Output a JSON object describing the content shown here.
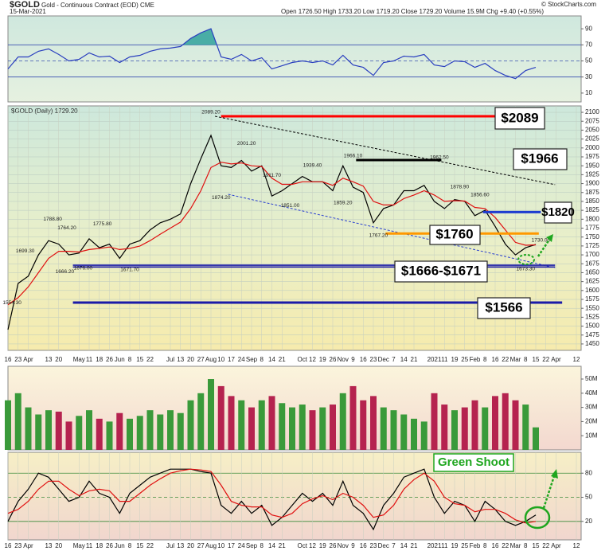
{
  "header": {
    "symbol": "$GOLD",
    "name": "Gold - Continuous Contract (EOD) CME",
    "date": "15-Mar-2021",
    "quote": "Open 1726.50 High 1733.20 Low 1719.20 Close 1729.20 Volume 15.9M Chg +9.40 (+0.55%)",
    "source": "© StockCharts.com"
  },
  "chart_data": [
    {
      "type": "line",
      "series": [
        {
          "color": "#2a3fbf",
          "values": [
            40,
            55,
            55,
            62,
            65,
            58,
            50,
            52,
            60,
            55,
            56,
            48,
            55,
            57,
            62,
            65,
            66,
            68,
            78,
            85,
            90,
            55,
            52,
            58,
            50,
            54,
            40,
            44,
            48,
            50,
            48,
            50,
            45,
            57,
            45,
            42,
            32,
            48,
            50,
            56,
            55,
            58,
            45,
            43,
            50,
            49,
            42,
            47,
            38,
            32,
            28,
            38,
            42,
            null,
            null,
            null,
            null
          ]
        }
      ],
      "ylim": [
        -1,
        106
      ],
      "yticks": [
        90,
        70,
        50,
        30,
        10
      ],
      "reference_lines": [
        70,
        50,
        30
      ],
      "fill_above": 70,
      "fill_color": "#3aa6a0"
    },
    {
      "type": "line",
      "title": "$GOLD (Daily) 1729.20",
      "categories": [
        "16",
        "23",
        "Apr",
        null,
        "13",
        "20",
        null,
        "May",
        "11",
        "18",
        "26",
        "Jun",
        "8",
        "15",
        "22",
        null,
        "Jul",
        "13",
        "20",
        "27",
        "Aug",
        "10",
        "17",
        "24",
        "Sep",
        "8",
        "14",
        "21",
        null,
        "Oct",
        "12",
        "19",
        "26",
        "Nov",
        "9",
        "16",
        "23",
        "Dec",
        "7",
        "14",
        "21",
        null,
        "2021",
        "11",
        "19",
        "25",
        "Feb",
        "8",
        "16",
        "22",
        "Mar",
        "8",
        "15",
        "22",
        "Apr",
        null,
        "12"
      ],
      "series": [
        {
          "color": "#000000",
          "values": [
            1490,
            1620,
            1640,
            1700,
            1740,
            1730,
            1700,
            1705,
            1745,
            1720,
            1730,
            1690,
            1730,
            1740,
            1770,
            1790,
            1800,
            1815,
            1900,
            1970,
            2035,
            1950,
            1945,
            1965,
            1935,
            1950,
            1865,
            1880,
            1900,
            1920,
            1905,
            1905,
            1880,
            1950,
            1890,
            1875,
            1790,
            1830,
            1840,
            1880,
            1880,
            1895,
            1850,
            1830,
            1855,
            1850,
            1810,
            1825,
            1780,
            1730,
            1700,
            1720,
            1729.2,
            null,
            null,
            null,
            null
          ]
        },
        {
          "color": "#e01010",
          "values": [
            1560,
            1580,
            1610,
            1650,
            1690,
            1710,
            1710,
            1708,
            1715,
            1718,
            1722,
            1715,
            1718,
            1725,
            1740,
            1758,
            1775,
            1792,
            1830,
            1880,
            1945,
            1960,
            1955,
            1958,
            1950,
            1948,
            1915,
            1898,
            1898,
            1905,
            1905,
            1905,
            1895,
            1915,
            1905,
            1893,
            1850,
            1840,
            1840,
            1858,
            1868,
            1880,
            1868,
            1850,
            1852,
            1851,
            1833,
            1830,
            1805,
            1770,
            1735,
            1727,
            1728,
            null,
            null,
            null,
            null
          ]
        }
      ],
      "ylim": [
        1432,
        2118
      ],
      "yticks": [
        1450,
        1475,
        1500,
        1525,
        1550,
        1575,
        1600,
        1625,
        1650,
        1675,
        1700,
        1725,
        1750,
        1775,
        1800,
        1825,
        1850,
        1875,
        1900,
        1925,
        1950,
        1975,
        2000,
        2025,
        2050,
        2075,
        2100
      ],
      "grid": true,
      "point_labels": [
        {
          "value": 2089.2,
          "label": "2089.20",
          "x": 20
        },
        {
          "value": 2001.2,
          "label": "2001.20",
          "x": 23.5
        },
        {
          "value": 1911.7,
          "label": "1911.70",
          "x": 26
        },
        {
          "value": 1874.2,
          "label": "1874.20",
          "x": 21
        },
        {
          "value": 1851,
          "label": "1851.00",
          "x": 27.8
        },
        {
          "value": 1939.4,
          "label": "1939.40",
          "x": 30
        },
        {
          "value": 1859.2,
          "label": "1859.20",
          "x": 33
        },
        {
          "value": 1966.1,
          "label": "1966.10",
          "x": 34
        },
        {
          "value": 1767.2,
          "label": "1767.20",
          "x": 36.5
        },
        {
          "value": 1962.5,
          "label": "1962.50",
          "x": 42.5
        },
        {
          "value": 1878.9,
          "label": "1878.90",
          "x": 44.5
        },
        {
          "value": 1856.6,
          "label": "1856.60",
          "x": 46.5
        },
        {
          "value": 1788.8,
          "label": "1788.80",
          "x": 4.4
        },
        {
          "value": 1764.2,
          "label": "1764.20",
          "x": 5.8
        },
        {
          "value": 1699.3,
          "label": "1699.30",
          "x": 1.7
        },
        {
          "value": 1666.2,
          "label": "1666.20",
          "x": 5.6
        },
        {
          "value": 1676,
          "label": "1676.00",
          "x": 7.4
        },
        {
          "value": 1775.8,
          "label": "1775.80",
          "x": 9.3
        },
        {
          "value": 1671.7,
          "label": "1671.70",
          "x": 12
        },
        {
          "value": 1554.3,
          "label": "1554.30",
          "x": 0.4
        },
        {
          "value": 1673.3,
          "label": "1673.30",
          "x": 51
        },
        {
          "value": 1730,
          "label": "1730.00",
          "x": 52.5
        }
      ],
      "levels": [
        {
          "label": "$2089",
          "values": [
            2089
          ],
          "x": [
            21,
            48
          ],
          "color": "#ff0000"
        },
        {
          "label": "$1966",
          "values": [
            1966
          ],
          "x": [
            34.3,
            42.7
          ],
          "color": "#000000"
        },
        {
          "label": "$1820",
          "values": [
            1820
          ],
          "x": [
            46.8,
            52.5
          ],
          "color": "#1e3cd0"
        },
        {
          "label": "$1760",
          "values": [
            1760
          ],
          "x": [
            37.2,
            52.3
          ],
          "color": "#ff9900"
        },
        {
          "label": "$1666-$1671",
          "values": [
            1666,
            1671
          ],
          "x": [
            6.4,
            53.9
          ],
          "color": "#1a1aa8"
        },
        {
          "label": "$1566",
          "values": [
            1566
          ],
          "x": [
            6.4,
            54.6
          ],
          "color": "#1a1aa8"
        }
      ],
      "trendlines": [
        {
          "from": [
            20.4,
            2089
          ],
          "to": [
            53.9,
            1897
          ],
          "color": "#000000"
        },
        {
          "from": [
            21.7,
            1870
          ],
          "to": [
            53.9,
            1664
          ],
          "color": "#2a3fd0"
        }
      ]
    },
    {
      "type": "bar",
      "values": [
        35,
        40,
        30,
        25,
        28,
        27,
        20,
        24,
        28,
        22,
        20,
        26,
        22,
        24,
        28,
        25,
        28,
        26,
        35,
        40,
        50,
        45,
        38,
        35,
        30,
        35,
        38,
        33,
        30,
        32,
        28,
        30,
        32,
        40,
        45,
        35,
        38,
        30,
        28,
        25,
        22,
        20,
        40,
        32,
        28,
        30,
        35,
        30,
        38,
        40,
        35,
        32,
        15.9,
        null,
        null,
        null,
        null
      ],
      "ylim": [
        0,
        59
      ],
      "yticks": [
        {
          "value": 50,
          "label": "50M"
        },
        {
          "value": 40,
          "label": "40M"
        },
        {
          "value": 30,
          "label": "30M"
        },
        {
          "value": 20,
          "label": "20M"
        },
        {
          "value": 10,
          "label": "10M"
        }
      ],
      "up_color": "#3a9a3a",
      "down_color": "#b5234f"
    },
    {
      "type": "line",
      "categories": [
        "16",
        "23",
        "Apr",
        null,
        "13",
        "20",
        null,
        "May",
        "11",
        "18",
        "26",
        "Jun",
        "8",
        "15",
        "22",
        null,
        "Jul",
        "13",
        "20",
        "27",
        "Aug",
        "10",
        "17",
        "24",
        "Sep",
        "8",
        "14",
        "21",
        null,
        "Oct",
        "12",
        "19",
        "26",
        "Nov",
        "9",
        "16",
        "23",
        "Dec",
        "7",
        "14",
        "21",
        null,
        "2021",
        "11",
        "19",
        "25",
        "Feb",
        "8",
        "16",
        "22",
        "Mar",
        "8",
        "15",
        "22",
        "Apr",
        null,
        "12"
      ],
      "series": [
        {
          "color": "#000000",
          "values": [
            20,
            45,
            60,
            80,
            75,
            60,
            45,
            50,
            70,
            55,
            50,
            30,
            55,
            65,
            75,
            80,
            85,
            85,
            85,
            82,
            80,
            40,
            30,
            45,
            30,
            40,
            15,
            25,
            40,
            55,
            45,
            55,
            40,
            70,
            40,
            30,
            10,
            40,
            55,
            75,
            80,
            85,
            50,
            30,
            45,
            40,
            20,
            45,
            35,
            20,
            15,
            20,
            28,
            null,
            null,
            null,
            null
          ]
        },
        {
          "color": "#e01010",
          "values": [
            30,
            35,
            45,
            60,
            70,
            70,
            60,
            52,
            58,
            60,
            58,
            45,
            45,
            55,
            65,
            73,
            80,
            83,
            85,
            84,
            82,
            65,
            45,
            40,
            38,
            38,
            28,
            25,
            30,
            42,
            48,
            52,
            47,
            55,
            50,
            40,
            25,
            28,
            40,
            60,
            72,
            80,
            70,
            50,
            42,
            40,
            32,
            35,
            35,
            30,
            22,
            18,
            20,
            null,
            null,
            null,
            null
          ]
        }
      ],
      "ylim": [
        -3,
        106
      ],
      "yticks": [
        80,
        50,
        20
      ],
      "reference_lines": [
        80,
        50,
        20
      ],
      "annotation": "Green Shoot"
    }
  ]
}
